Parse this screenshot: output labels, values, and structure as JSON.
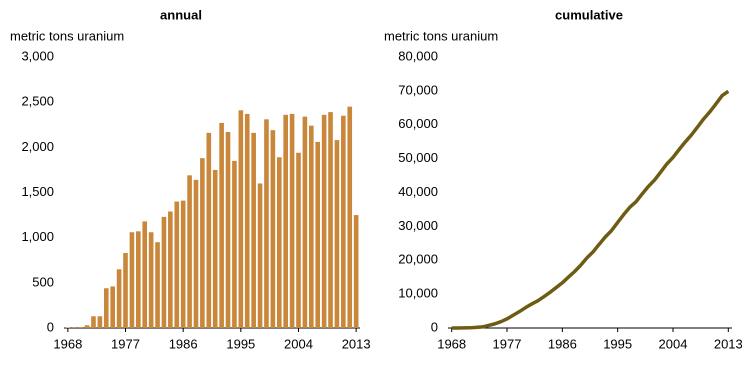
{
  "chart_data": [
    {
      "type": "bar",
      "title": "annual",
      "y_label": "metric tons uranium",
      "color": "#c8873a",
      "x": [
        1968,
        1969,
        1970,
        1971,
        1972,
        1973,
        1974,
        1975,
        1976,
        1977,
        1978,
        1979,
        1980,
        1981,
        1982,
        1983,
        1984,
        1985,
        1986,
        1987,
        1988,
        1989,
        1990,
        1991,
        1992,
        1993,
        1994,
        1995,
        1996,
        1997,
        1998,
        1999,
        2000,
        2001,
        2002,
        2003,
        2004,
        2005,
        2006,
        2007,
        2008,
        2009,
        2010,
        2011,
        2012,
        2013
      ],
      "values": [
        5,
        10,
        10,
        30,
        130,
        130,
        440,
        460,
        650,
        830,
        1060,
        1070,
        1180,
        1060,
        950,
        1230,
        1290,
        1400,
        1410,
        1690,
        1640,
        1880,
        2160,
        1750,
        2270,
        2170,
        1850,
        2410,
        2370,
        2160,
        1600,
        2310,
        2190,
        1890,
        2360,
        2370,
        1940,
        2340,
        2240,
        2060,
        2360,
        2390,
        2080,
        2350,
        2450,
        1250
      ],
      "xlim": [
        1967.4,
        2013.6
      ],
      "xticks": [
        1968,
        1977,
        1986,
        1995,
        2004,
        2013
      ],
      "ylim": [
        0,
        3000
      ],
      "yticks": [
        0,
        500,
        {
          "value": 1000,
          "label": "1,000"
        },
        {
          "value": 1500,
          "label": "1,500"
        },
        {
          "value": 2000,
          "label": "2,000"
        },
        {
          "value": 2500,
          "label": "2,500"
        },
        {
          "value": 3000,
          "label": "3,000"
        }
      ]
    },
    {
      "type": "line",
      "title": "cumulative",
      "y_label": "metric tons uranium",
      "color": "#6e5c14",
      "x": [
        1968,
        1969,
        1970,
        1971,
        1972,
        1973,
        1974,
        1975,
        1976,
        1977,
        1978,
        1979,
        1980,
        1981,
        1982,
        1983,
        1984,
        1985,
        1986,
        1987,
        1988,
        1989,
        1990,
        1991,
        1992,
        1993,
        1994,
        1995,
        1996,
        1997,
        1998,
        1999,
        2000,
        2001,
        2002,
        2003,
        2004,
        2005,
        2006,
        2007,
        2008,
        2009,
        2010,
        2011,
        2012,
        2013
      ],
      "values": [
        5,
        15,
        25,
        55,
        185,
        315,
        755,
        1215,
        1865,
        2695,
        3755,
        4825,
        6005,
        7065,
        8015,
        9245,
        10535,
        11935,
        13345,
        15035,
        16675,
        18555,
        20715,
        22465,
        24735,
        26905,
        28755,
        31165,
        33535,
        35695,
        37295,
        39605,
        41795,
        43685,
        46045,
        48415,
        50355,
        52695,
        54935,
        56995,
        59355,
        61745,
        63825,
        66175,
        68625,
        69875
      ],
      "xlim": [
        1967.4,
        2013.6
      ],
      "xticks": [
        1968,
        1977,
        1986,
        1995,
        2004,
        2013
      ],
      "ylim": [
        0,
        80000
      ],
      "yticks": [
        0,
        {
          "value": 10000,
          "label": "10,000"
        },
        {
          "value": 20000,
          "label": "20,000"
        },
        {
          "value": 30000,
          "label": "30,000"
        },
        {
          "value": 40000,
          "label": "40,000"
        },
        {
          "value": 50000,
          "label": "50,000"
        },
        {
          "value": 60000,
          "label": "60,000"
        },
        {
          "value": 70000,
          "label": "70,000"
        },
        {
          "value": 80000,
          "label": "80,000"
        }
      ]
    }
  ]
}
